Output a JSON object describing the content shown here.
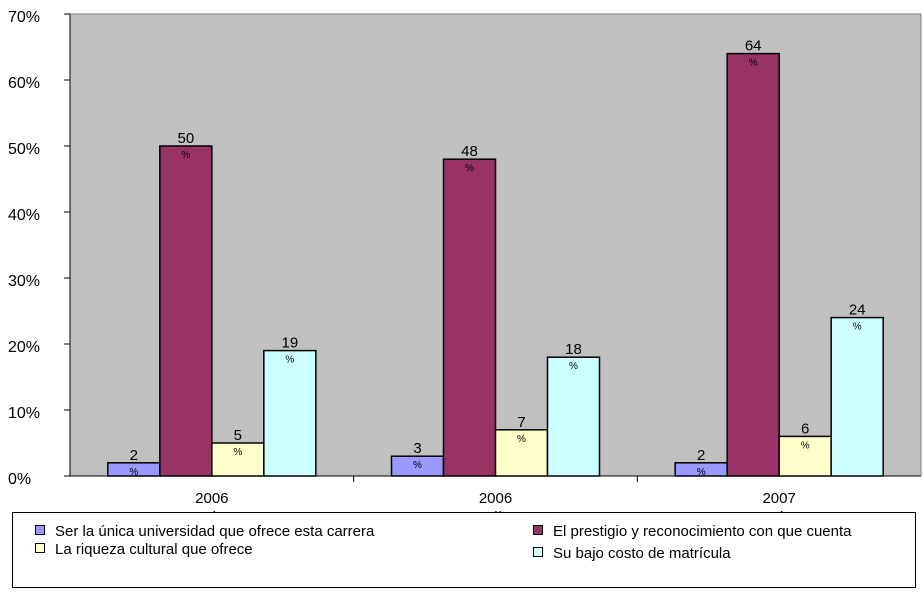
{
  "chart_data": {
    "type": "bar",
    "categories": [
      {
        "line1": "2006",
        "line2": "-I"
      },
      {
        "line1": "2006",
        "line2": "-II"
      },
      {
        "line1": "2007",
        "line2": "-I"
      }
    ],
    "series": [
      {
        "name": "Ser la única universidad que ofrece esta carrera",
        "color": "#9999ff",
        "values": [
          2,
          3,
          2
        ]
      },
      {
        "name": "El prestigio y reconocimiento con que cuenta",
        "color": "#993366",
        "values": [
          50,
          48,
          64
        ]
      },
      {
        "name": "La riqueza cultural que ofrece",
        "color": "#ffffcc",
        "values": [
          5,
          7,
          6
        ]
      },
      {
        "name": "Su bajo costo de matrícula",
        "color": "#ccffff",
        "values": [
          19,
          18,
          24
        ]
      }
    ],
    "data_label_suffix": "%",
    "ylim": [
      0,
      70
    ],
    "yticks": [
      "0%",
      "10%",
      "20%",
      "30%",
      "40%",
      "50%",
      "60%",
      "70%"
    ],
    "plot_background": "#c0c0c0",
    "legend_position": "bottom",
    "grid": false
  }
}
